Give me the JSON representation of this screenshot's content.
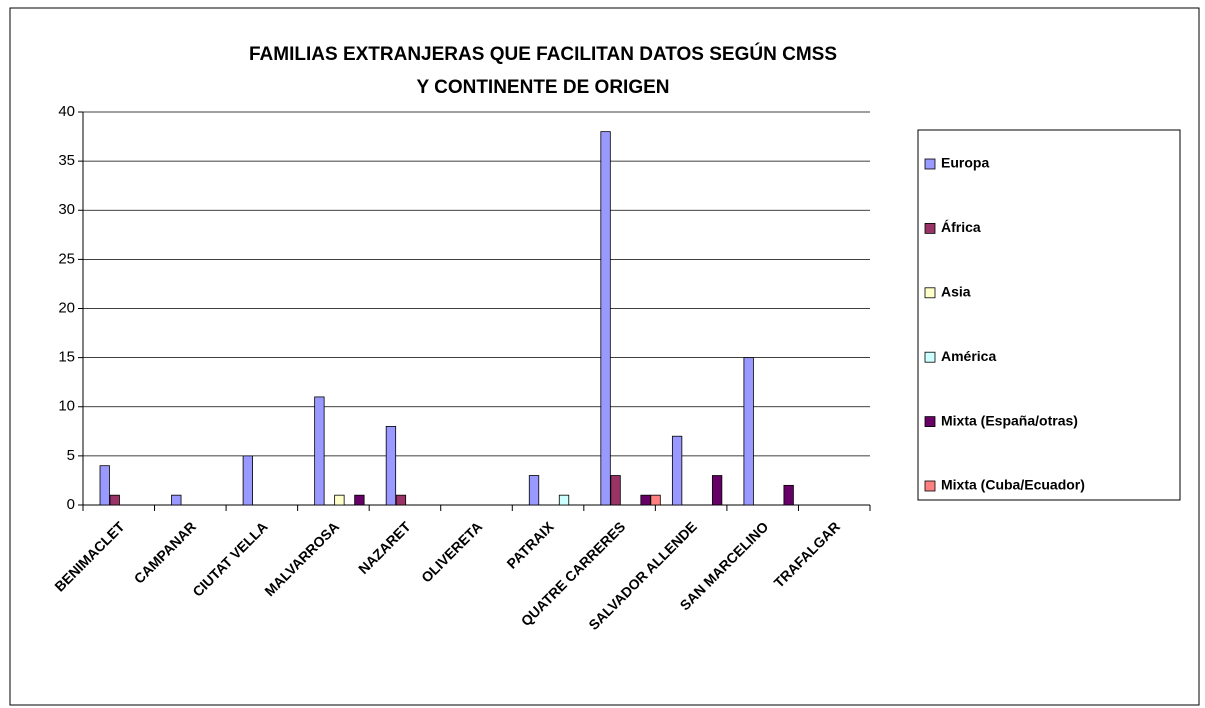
{
  "chart_data": {
    "type": "bar",
    "title": [
      "FAMILIAS EXTRANJERAS QUE FACILITAN DATOS SEGÚN CMSS",
      "Y CONTINENTE DE ORIGEN"
    ],
    "categories": [
      "BENIMACLET",
      "CAMPANAR",
      "CIUTAT VELLA",
      "MALVARROSA",
      "NAZARET",
      "OLIVERETA",
      "PATRAIX",
      "QUATRE CARRERES",
      "SALVADOR ALLENDE",
      "SAN MARCELINO",
      "TRAFALGAR"
    ],
    "series": [
      {
        "name": "Europa",
        "color": "#9999ff",
        "values": [
          4,
          1,
          5,
          11,
          8,
          0,
          3,
          38,
          7,
          15,
          0
        ]
      },
      {
        "name": "África",
        "color": "#993366",
        "values": [
          1,
          0,
          0,
          0,
          1,
          0,
          0,
          3,
          0,
          0,
          0
        ]
      },
      {
        "name": "Asia",
        "color": "#ffffcc",
        "values": [
          0,
          0,
          0,
          1,
          0,
          0,
          0,
          0,
          0,
          0,
          0
        ]
      },
      {
        "name": "América",
        "color": "#ccffff",
        "values": [
          0,
          0,
          0,
          0,
          0,
          0,
          1,
          0,
          0,
          0,
          0
        ]
      },
      {
        "name": "Mixta  (España/otras)",
        "color": "#660066",
        "values": [
          0,
          0,
          0,
          1,
          0,
          0,
          0,
          1,
          3,
          2,
          0
        ]
      },
      {
        "name": "Mixta  (Cuba/Ecuador)",
        "color": "#ff8080",
        "values": [
          0,
          0,
          0,
          0,
          0,
          0,
          0,
          1,
          0,
          0,
          0
        ]
      }
    ],
    "ylim": [
      0,
      40
    ],
    "yticks": [
      0,
      5,
      10,
      15,
      20,
      25,
      30,
      35,
      40
    ],
    "grid": true,
    "legend": "right"
  }
}
